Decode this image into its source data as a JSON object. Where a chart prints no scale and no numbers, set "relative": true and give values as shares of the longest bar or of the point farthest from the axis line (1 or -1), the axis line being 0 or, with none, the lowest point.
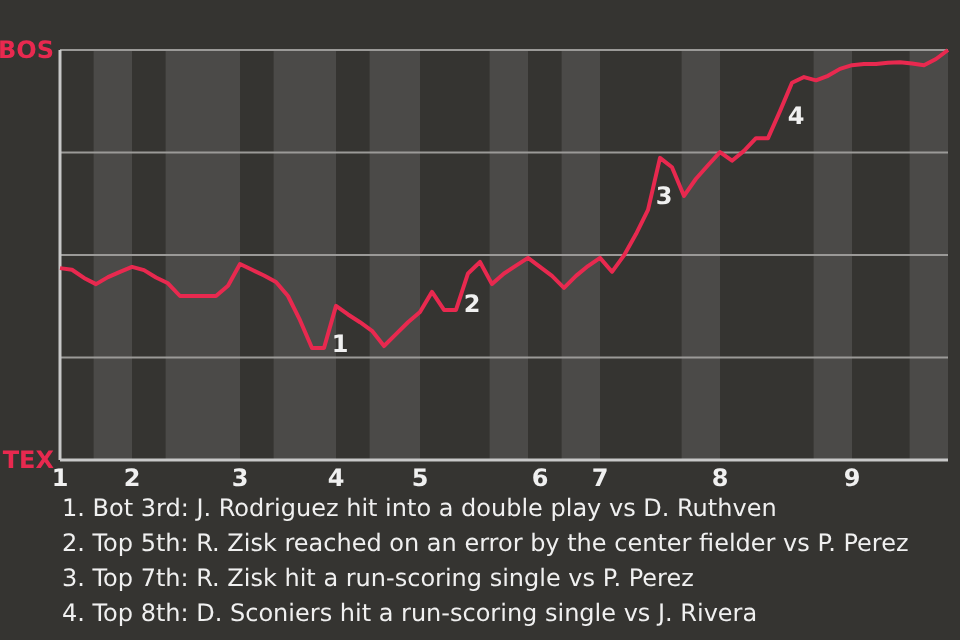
{
  "chart_data": {
    "type": "line",
    "relative": true,
    "categories": [
      "1",
      null,
      null,
      null,
      null,
      null,
      "2",
      null,
      null,
      null,
      null,
      null,
      null,
      null,
      null,
      "3",
      null,
      null,
      null,
      null,
      null,
      null,
      null,
      "4",
      null,
      null,
      null,
      null,
      null,
      null,
      "5",
      null,
      null,
      null,
      null,
      null,
      null,
      null,
      null,
      null,
      "6",
      null,
      null,
      null,
      null,
      "7",
      null,
      null,
      null,
      null,
      null,
      null,
      null,
      null,
      null,
      "8",
      null,
      null,
      null,
      null,
      null,
      null,
      null,
      null,
      null,
      null,
      "9",
      null,
      null,
      null,
      null,
      null,
      null,
      null,
      null
    ],
    "grid": "y",
    "series": [
      {
        "color": "#e8294f",
        "values": [
          0.468,
          0.464,
          0.444,
          0.429,
          0.446,
          0.459,
          0.471,
          0.463,
          0.445,
          0.431,
          0.4,
          0.4,
          0.4,
          0.4,
          0.425,
          0.478,
          0.464,
          0.45,
          0.434,
          0.4,
          0.341,
          0.273,
          0.273,
          0.376,
          0.355,
          0.336,
          0.315,
          0.278,
          0.307,
          0.336,
          0.361,
          0.41,
          0.366,
          0.366,
          0.455,
          0.483,
          0.429,
          0.455,
          0.474,
          0.493,
          0.471,
          0.449,
          0.42,
          0.449,
          0.473,
          0.493,
          0.459,
          0.499,
          0.551,
          0.61,
          0.737,
          0.714,
          0.644,
          0.686,
          0.719,
          0.751,
          0.73,
          0.754,
          0.785,
          0.785,
          0.851,
          0.92,
          0.934,
          0.926,
          0.937,
          0.954,
          0.963,
          0.966,
          0.966,
          0.969,
          0.97,
          0.967,
          0.963,
          0.978,
          1
        ]
      }
    ],
    "annotations": [
      "BOS",
      "TEX",
      "1",
      "2",
      "3",
      "4",
      "1. Bot 3rd: J. Rodriguez hit into a double play vs D. Ruthven",
      "2. Top 5th: R. Zisk reached on an error by the center fielder vs P. Perez",
      "3. Top 7th: R. Zisk hit a run-scoring single vs P. Perez",
      "4. Top 8th: D. Sconiers hit a run-scoring single vs J. Rivera"
    ]
  }
}
